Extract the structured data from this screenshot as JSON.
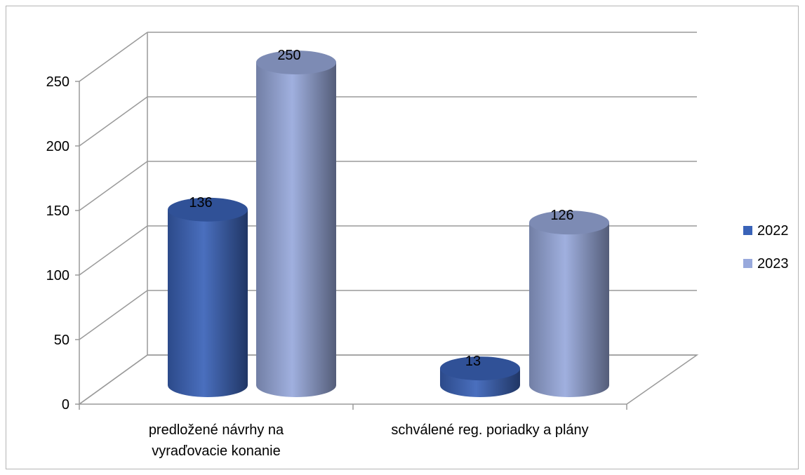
{
  "chart_data": {
    "type": "bar",
    "style": "3d-cylinder",
    "categories": [
      "predložené návrhy na vyraďovacie konanie",
      "schválené reg. poriadky a plány"
    ],
    "category_lines": [
      [
        "predložené návrhy na",
        "vyraďovacie konanie"
      ],
      [
        "schválené reg. poriadky a plány"
      ]
    ],
    "series": [
      {
        "name": "2022",
        "values": [
          136,
          13
        ],
        "color": "#3a63b8"
      },
      {
        "name": "2023",
        "values": [
          250,
          126
        ],
        "color": "#98a9dc"
      }
    ],
    "y_ticks": [
      "0",
      "50",
      "100",
      "150",
      "200",
      "250"
    ],
    "ylim": [
      0,
      250
    ],
    "grid": true,
    "legend": "right",
    "title": "",
    "xlabel": "",
    "ylabel": ""
  }
}
